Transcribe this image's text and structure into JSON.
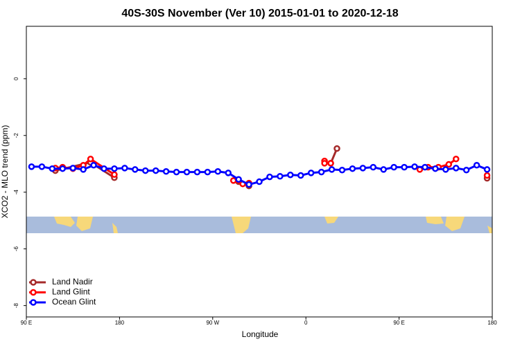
{
  "chart_data": {
    "type": "line",
    "title": "40S-30S November (Ver 10)   2015-01-01 to 2020-12-18",
    "x_label": "Longitude",
    "y_label": "XCO2 - MLO trend (ppm)",
    "xlim": [
      90,
      540
    ],
    "ylim": [
      -8.4,
      1.85
    ],
    "xticks": [
      {
        "value": 90,
        "label": "90 E"
      },
      {
        "value": 180,
        "label": "180"
      },
      {
        "value": 270,
        "label": "90 W"
      },
      {
        "value": 360,
        "label": "0"
      },
      {
        "value": 450,
        "label": "90 E"
      },
      {
        "value": 540,
        "label": "180"
      }
    ],
    "yticks": [
      0,
      -2,
      -4,
      -6,
      -8
    ],
    "legend": "bottom-left",
    "series": [
      {
        "name": "Land Nadir",
        "color": "#a52a2a",
        "x": [
          118,
          152,
          175,
          230,
          295,
          305,
          340,
          384,
          390,
          500,
          535
        ],
        "values": [
          -3.24,
          -2.95,
          -3.49,
          null,
          -3.63,
          -3.78,
          null,
          -2.98,
          -2.46,
          null,
          -3.51
        ]
      },
      {
        "name": "Land Glint",
        "color": "#ff0000",
        "x": [
          118,
          125,
          135,
          145,
          152,
          175,
          230,
          290,
          299,
          305,
          340,
          378,
          378,
          384,
          440,
          470,
          478,
          488,
          498,
          505,
          520,
          535
        ],
        "values": [
          -3.15,
          -3.12,
          -3.17,
          -3.05,
          -2.83,
          -3.38,
          null,
          -3.59,
          -3.71,
          -3.68,
          null,
          -2.9,
          -2.98,
          -2.98,
          null,
          -3.2,
          -3.12,
          -3.12,
          -3.02,
          -2.83,
          null,
          -3.41
        ]
      },
      {
        "name": "Ocean Glint",
        "color": "#0000ff",
        "x": [
          95,
          105,
          115,
          125,
          135,
          145,
          155,
          165,
          175,
          185,
          195,
          205,
          215,
          225,
          235,
          245,
          255,
          265,
          275,
          285,
          295,
          305,
          315,
          325,
          335,
          345,
          355,
          365,
          375,
          385,
          395,
          405,
          415,
          425,
          435,
          445,
          455,
          465,
          475,
          485,
          495,
          505,
          515,
          525,
          535
        ],
        "values": [
          -3.1,
          -3.1,
          -3.17,
          -3.17,
          -3.15,
          -3.2,
          -3.05,
          -3.17,
          -3.17,
          -3.15,
          -3.2,
          -3.24,
          -3.24,
          -3.27,
          -3.29,
          -3.29,
          -3.29,
          -3.29,
          -3.27,
          -3.32,
          -3.55,
          -3.73,
          -3.63,
          -3.46,
          -3.44,
          -3.39,
          -3.41,
          -3.32,
          -3.29,
          -3.2,
          -3.22,
          -3.17,
          -3.15,
          -3.12,
          -3.2,
          -3.12,
          -3.12,
          -3.1,
          -3.12,
          -3.17,
          -3.2,
          -3.15,
          -3.22,
          -3.05,
          -3.2
        ]
      }
    ]
  }
}
